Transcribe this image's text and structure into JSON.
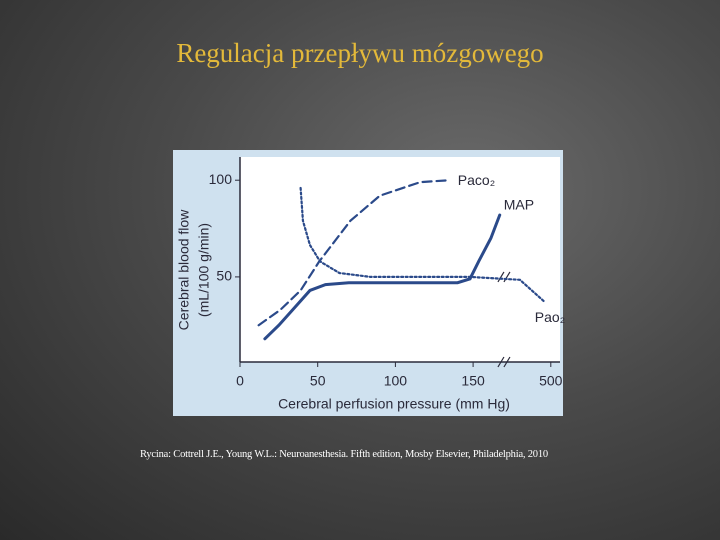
{
  "title": "Regulacja przepływu mózgowego",
  "caption": "Rycina: Cottrell J.E., Young W.L.: Neuroanesthesia. Fifth edition, Mosby Elsevier, Philadelphia, 2010",
  "chart_data": {
    "type": "line",
    "xlabel": "Cerebral perfusion pressure (mm Hg)",
    "ylabel": [
      "Cerebral blood flow",
      "(mL/100 g/min)"
    ],
    "xlim": [
      0,
      500
    ],
    "xticks": [
      0,
      50,
      100,
      150,
      500
    ],
    "ylim": [
      6,
      112
    ],
    "yticks": [
      50,
      100
    ],
    "axis_break": true,
    "series": [
      {
        "name": "MAP",
        "color": "#2b4a8a",
        "style": "solid",
        "x": [
          16,
          25,
          35,
          45,
          55,
          70,
          100,
          140,
          148,
          175,
          230,
          270
        ],
        "values": [
          18,
          25,
          34,
          43,
          46,
          47,
          47,
          47,
          49,
          58,
          70,
          82
        ]
      },
      {
        "name": "Paco₂",
        "color": "#2b4a8a",
        "style": "dashed",
        "x": [
          12,
          26,
          39,
          51,
          71,
          90,
          116,
          135
        ],
        "values": [
          25,
          33,
          43,
          58,
          79,
          92,
          99,
          100
        ]
      },
      {
        "name": "Pao₂",
        "color": "#2b4a8a",
        "style": "dotted",
        "x": [
          39,
          40.5,
          45,
          51.5,
          64,
          84,
          148,
          361,
          473
        ],
        "values": [
          96,
          79,
          66.5,
          58,
          52,
          50,
          50,
          48.5,
          37
        ]
      }
    ]
  }
}
